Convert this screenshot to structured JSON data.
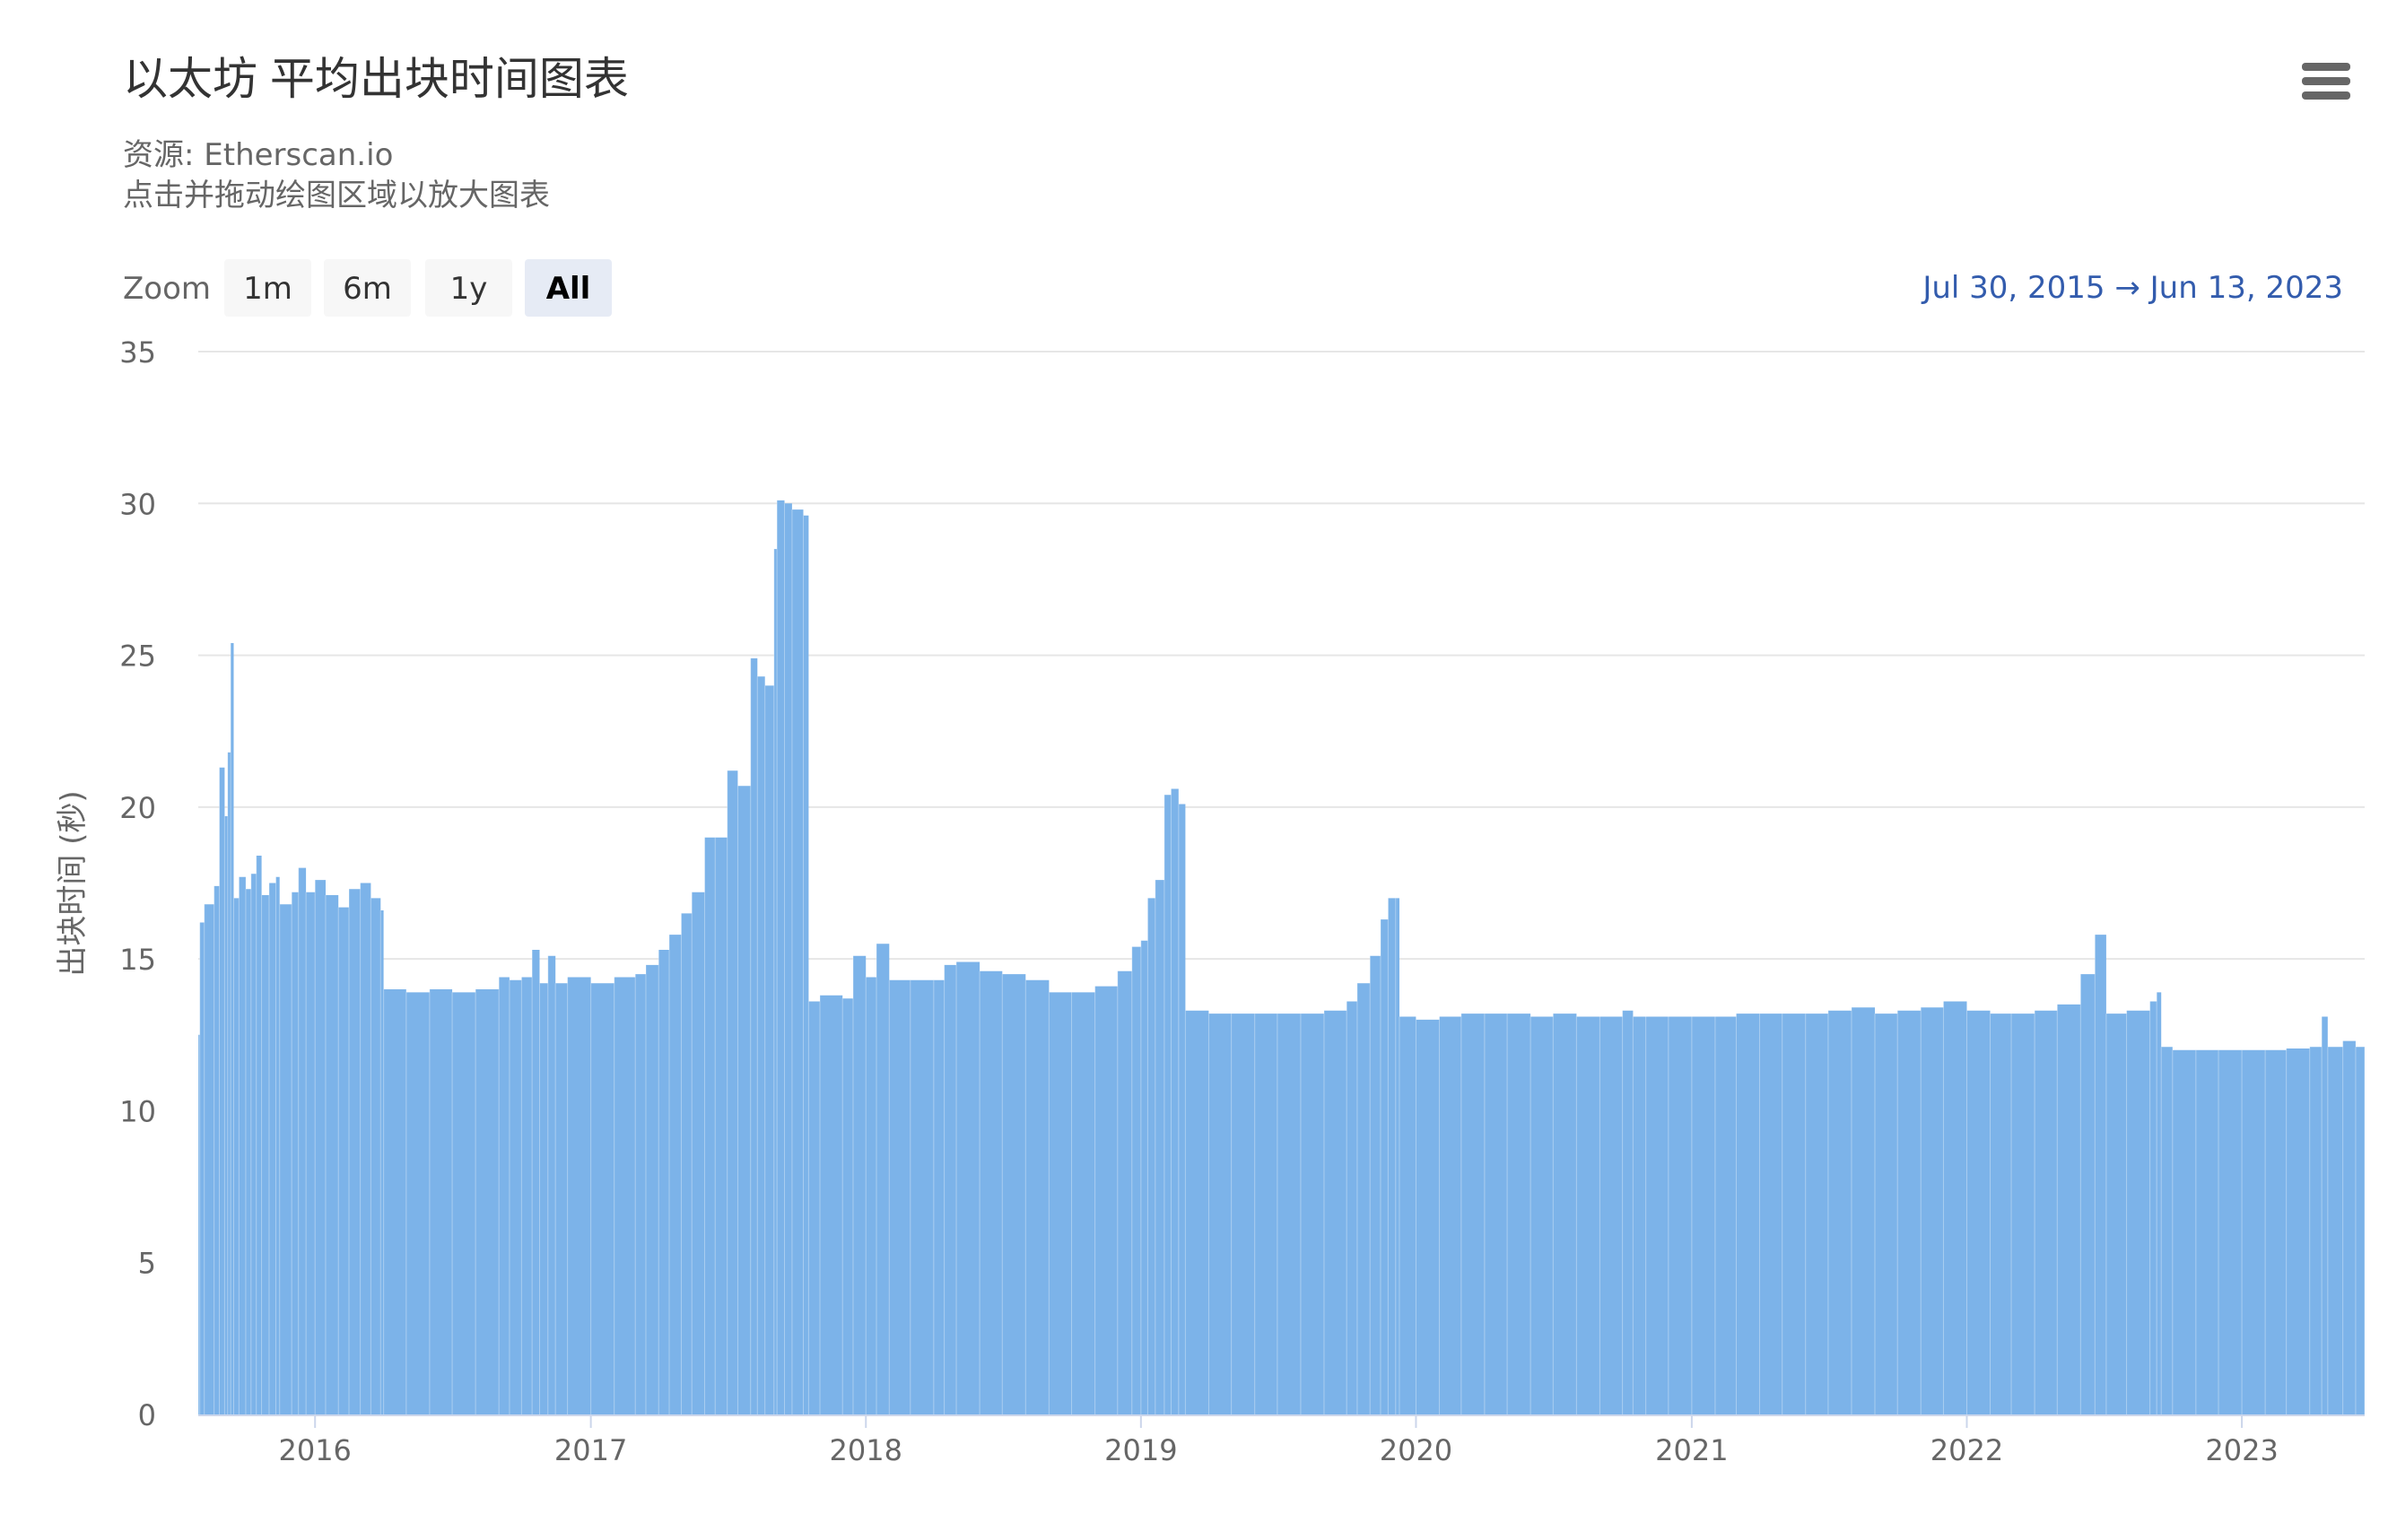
{
  "chart_data": {
    "type": "bar",
    "title": "以太坊 平均出块时间图表",
    "subtitle_lines": [
      "资源: Etherscan.io",
      "点击并拖动绘图区域以放大图表"
    ],
    "ylabel": "出块时间 (秒)",
    "ylim": [
      0,
      35
    ],
    "yticks": [
      0,
      5,
      10,
      15,
      20,
      25,
      30,
      35
    ],
    "x_range": [
      "2015-07-30",
      "2023-06-13"
    ],
    "xticks": [
      "2016",
      "2017",
      "2018",
      "2019",
      "2020",
      "2021",
      "2022",
      "2023"
    ],
    "grid": true,
    "legend": "none",
    "zoom": {
      "label": "Zoom",
      "buttons": [
        "1m",
        "6m",
        "1y",
        "All"
      ],
      "selected": "All"
    },
    "date_range": {
      "from": "Jul 30, 2015",
      "arrow": "→",
      "to": "Jun 13, 2023"
    },
    "series": [
      {
        "color": "#7cb3e9",
        "points": [
          [
            "2015-07-30",
            12.5
          ],
          [
            "2015-08-01",
            16.2
          ],
          [
            "2015-08-07",
            16.8
          ],
          [
            "2015-08-20",
            17.4
          ],
          [
            "2015-08-27",
            21.3
          ],
          [
            "2015-09-03",
            19.7
          ],
          [
            "2015-09-07",
            21.8
          ],
          [
            "2015-09-11",
            25.4
          ],
          [
            "2015-09-15",
            17.0
          ],
          [
            "2015-09-22",
            17.7
          ],
          [
            "2015-10-01",
            17.3
          ],
          [
            "2015-10-08",
            17.8
          ],
          [
            "2015-10-15",
            18.4
          ],
          [
            "2015-10-22",
            17.1
          ],
          [
            "2015-11-01",
            17.5
          ],
          [
            "2015-11-10",
            17.7
          ],
          [
            "2015-11-15",
            16.8
          ],
          [
            "2015-12-01",
            17.2
          ],
          [
            "2015-12-10",
            18.0
          ],
          [
            "2015-12-20",
            17.2
          ],
          [
            "2016-01-01",
            17.6
          ],
          [
            "2016-01-15",
            17.1
          ],
          [
            "2016-02-01",
            16.7
          ],
          [
            "2016-02-15",
            17.3
          ],
          [
            "2016-03-01",
            17.5
          ],
          [
            "2016-03-15",
            17.0
          ],
          [
            "2016-03-28",
            16.6
          ],
          [
            "2016-04-01",
            14.0
          ],
          [
            "2016-05-01",
            13.9
          ],
          [
            "2016-06-01",
            14.0
          ],
          [
            "2016-07-01",
            13.9
          ],
          [
            "2016-08-01",
            14.0
          ],
          [
            "2016-09-01",
            14.4
          ],
          [
            "2016-09-15",
            14.3
          ],
          [
            "2016-10-01",
            14.4
          ],
          [
            "2016-10-15",
            15.3
          ],
          [
            "2016-10-25",
            14.2
          ],
          [
            "2016-11-05",
            15.1
          ],
          [
            "2016-11-15",
            14.2
          ],
          [
            "2016-12-01",
            14.4
          ],
          [
            "2017-01-01",
            14.2
          ],
          [
            "2017-02-01",
            14.4
          ],
          [
            "2017-03-01",
            14.5
          ],
          [
            "2017-03-15",
            14.8
          ],
          [
            "2017-04-01",
            15.3
          ],
          [
            "2017-04-15",
            15.8
          ],
          [
            "2017-05-01",
            16.5
          ],
          [
            "2017-05-15",
            17.2
          ],
          [
            "2017-06-01",
            19.0
          ],
          [
            "2017-06-15",
            19.0
          ],
          [
            "2017-07-01",
            21.2
          ],
          [
            "2017-07-15",
            20.7
          ],
          [
            "2017-08-01",
            24.9
          ],
          [
            "2017-08-10",
            24.3
          ],
          [
            "2017-08-20",
            24.0
          ],
          [
            "2017-09-01",
            28.5
          ],
          [
            "2017-09-05",
            30.1
          ],
          [
            "2017-09-15",
            30.0
          ],
          [
            "2017-09-25",
            29.8
          ],
          [
            "2017-10-10",
            29.6
          ],
          [
            "2017-10-17",
            13.6
          ],
          [
            "2017-11-01",
            13.8
          ],
          [
            "2017-12-01",
            13.7
          ],
          [
            "2017-12-15",
            15.1
          ],
          [
            "2018-01-01",
            14.4
          ],
          [
            "2018-01-15",
            15.5
          ],
          [
            "2018-02-01",
            14.3
          ],
          [
            "2018-03-01",
            14.3
          ],
          [
            "2018-04-01",
            14.3
          ],
          [
            "2018-04-15",
            14.8
          ],
          [
            "2018-05-01",
            14.9
          ],
          [
            "2018-06-01",
            14.6
          ],
          [
            "2018-07-01",
            14.5
          ],
          [
            "2018-08-01",
            14.3
          ],
          [
            "2018-09-01",
            13.9
          ],
          [
            "2018-10-01",
            13.9
          ],
          [
            "2018-11-01",
            14.1
          ],
          [
            "2018-12-01",
            14.6
          ],
          [
            "2018-12-20",
            15.4
          ],
          [
            "2019-01-01",
            15.6
          ],
          [
            "2019-01-10",
            17.0
          ],
          [
            "2019-01-20",
            17.6
          ],
          [
            "2019-02-01",
            20.4
          ],
          [
            "2019-02-10",
            20.6
          ],
          [
            "2019-02-20",
            20.1
          ],
          [
            "2019-03-01",
            13.3
          ],
          [
            "2019-04-01",
            13.2
          ],
          [
            "2019-05-01",
            13.2
          ],
          [
            "2019-06-01",
            13.2
          ],
          [
            "2019-07-01",
            13.2
          ],
          [
            "2019-08-01",
            13.2
          ],
          [
            "2019-09-01",
            13.3
          ],
          [
            "2019-10-01",
            13.6
          ],
          [
            "2019-10-15",
            14.2
          ],
          [
            "2019-11-01",
            15.1
          ],
          [
            "2019-11-15",
            16.3
          ],
          [
            "2019-11-25",
            17.0
          ],
          [
            "2019-12-05",
            17.0
          ],
          [
            "2019-12-10",
            13.1
          ],
          [
            "2020-01-01",
            13.0
          ],
          [
            "2020-02-01",
            13.1
          ],
          [
            "2020-03-01",
            13.2
          ],
          [
            "2020-04-01",
            13.2
          ],
          [
            "2020-05-01",
            13.2
          ],
          [
            "2020-06-01",
            13.1
          ],
          [
            "2020-07-01",
            13.2
          ],
          [
            "2020-08-01",
            13.1
          ],
          [
            "2020-09-01",
            13.1
          ],
          [
            "2020-10-01",
            13.3
          ],
          [
            "2020-10-15",
            13.1
          ],
          [
            "2020-11-01",
            13.1
          ],
          [
            "2020-12-01",
            13.1
          ],
          [
            "2021-01-01",
            13.1
          ],
          [
            "2021-02-01",
            13.1
          ],
          [
            "2021-03-01",
            13.2
          ],
          [
            "2021-04-01",
            13.2
          ],
          [
            "2021-05-01",
            13.2
          ],
          [
            "2021-06-01",
            13.2
          ],
          [
            "2021-07-01",
            13.3
          ],
          [
            "2021-08-01",
            13.4
          ],
          [
            "2021-09-01",
            13.2
          ],
          [
            "2021-10-01",
            13.3
          ],
          [
            "2021-11-01",
            13.4
          ],
          [
            "2021-12-01",
            13.6
          ],
          [
            "2022-01-01",
            13.3
          ],
          [
            "2022-02-01",
            13.2
          ],
          [
            "2022-03-01",
            13.2
          ],
          [
            "2022-04-01",
            13.3
          ],
          [
            "2022-05-01",
            13.5
          ],
          [
            "2022-06-01",
            14.5
          ],
          [
            "2022-06-20",
            15.8
          ],
          [
            "2022-07-05",
            13.2
          ],
          [
            "2022-08-01",
            13.3
          ],
          [
            "2022-09-01",
            13.6
          ],
          [
            "2022-09-10",
            13.9
          ],
          [
            "2022-09-16",
            12.1
          ],
          [
            "2022-10-01",
            12.0
          ],
          [
            "2022-11-01",
            12.0
          ],
          [
            "2022-12-01",
            12.0
          ],
          [
            "2023-01-01",
            12.0
          ],
          [
            "2023-02-01",
            12.0
          ],
          [
            "2023-03-01",
            12.05
          ],
          [
            "2023-04-01",
            12.1
          ],
          [
            "2023-04-17",
            13.1
          ],
          [
            "2023-04-25",
            12.1
          ],
          [
            "2023-05-15",
            12.3
          ],
          [
            "2023-06-01",
            12.1
          ],
          [
            "2023-06-13",
            12.1
          ]
        ]
      }
    ]
  },
  "colors": {
    "bar": "#7cb3e9",
    "grid": "#e6e6e6",
    "axis": "#ccd6eb",
    "range_text": "#335cad",
    "button_bg": "#f7f7f7",
    "button_selected_bg": "#e6ebf5"
  },
  "menu_icon": "hamburger-menu-icon"
}
